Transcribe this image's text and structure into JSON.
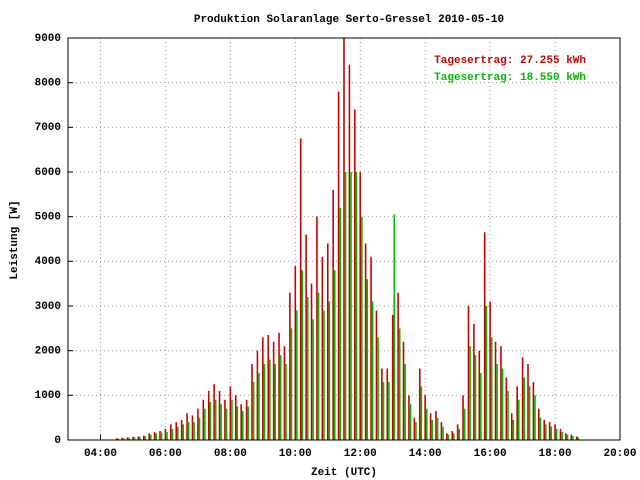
{
  "chart_data": {
    "type": "impulse",
    "title": "Produktion Solaranlage Serto-Gressel 2010-05-10",
    "x_label": "Zeit (UTC)",
    "y_label": "Leistung [W]",
    "x": [
      270,
      280,
      290,
      300,
      310,
      320,
      330,
      340,
      350,
      360,
      370,
      380,
      390,
      400,
      410,
      420,
      430,
      440,
      450,
      460,
      470,
      480,
      490,
      500,
      510,
      520,
      530,
      540,
      550,
      560,
      570,
      580,
      590,
      600,
      610,
      620,
      630,
      640,
      650,
      660,
      670,
      680,
      690,
      700,
      710,
      720,
      730,
      740,
      750,
      760,
      770,
      780,
      790,
      800,
      810,
      820,
      830,
      840,
      850,
      860,
      870,
      880,
      890,
      900,
      910,
      920,
      930,
      940,
      950,
      960,
      970,
      980,
      990,
      1000,
      1010,
      1020,
      1030,
      1040,
      1050,
      1060,
      1070,
      1080,
      1090,
      1100,
      1110,
      1120
    ],
    "series": [
      {
        "name": "Tagesertrag: 27.255 kWh",
        "color": "#cc0000",
        "values": [
          40,
          50,
          60,
          70,
          80,
          100,
          150,
          180,
          200,
          250,
          350,
          400,
          450,
          600,
          550,
          700,
          900,
          1100,
          1250,
          1100,
          900,
          1200,
          1000,
          800,
          900,
          1700,
          2000,
          2300,
          2350,
          2200,
          2400,
          2100,
          3300,
          3900,
          6750,
          4600,
          3500,
          5000,
          4100,
          4400,
          5600,
          7800,
          9000,
          8400,
          7400,
          6000,
          4400,
          4100,
          2900,
          1600,
          1600,
          2800,
          3300,
          2200,
          1000,
          500,
          1600,
          1000,
          600,
          650,
          400,
          150,
          200,
          350,
          1000,
          3000,
          2600,
          2000,
          4650,
          3100,
          2200,
          2100,
          1400,
          600,
          1200,
          1850,
          1700,
          1300,
          700,
          450,
          400,
          350,
          250,
          150,
          120,
          80
        ]
      },
      {
        "name": "Tagesertrag: 18.550 kWh",
        "color": "#00bb00",
        "values": [
          30,
          40,
          50,
          60,
          70,
          80,
          120,
          150,
          170,
          180,
          250,
          300,
          350,
          400,
          400,
          500,
          700,
          850,
          900,
          800,
          700,
          900,
          750,
          650,
          750,
          1300,
          1500,
          1700,
          1800,
          1700,
          1900,
          1700,
          2500,
          2900,
          3800,
          3200,
          2700,
          3300,
          2900,
          3100,
          3800,
          5200,
          6000,
          6000,
          6000,
          5000,
          3600,
          3100,
          2300,
          1300,
          1300,
          5050,
          2500,
          1700,
          800,
          400,
          1200,
          700,
          450,
          500,
          300,
          120,
          150,
          250,
          700,
          2100,
          1900,
          1500,
          3000,
          2300,
          1700,
          1600,
          1100,
          450,
          900,
          1400,
          1200,
          1000,
          500,
          350,
          300,
          250,
          180,
          120,
          90,
          60
        ]
      }
    ],
    "xlim": [
      180,
      1200
    ],
    "xticks": [
      {
        "value": 240,
        "label": "04:00"
      },
      {
        "value": 360,
        "label": "06:00"
      },
      {
        "value": 480,
        "label": "08:00"
      },
      {
        "value": 600,
        "label": "10:00"
      },
      {
        "value": 720,
        "label": "12:00"
      },
      {
        "value": 840,
        "label": "14:00"
      },
      {
        "value": 960,
        "label": "16:00"
      },
      {
        "value": 1080,
        "label": "18:00"
      },
      {
        "value": 1200,
        "label": "20:00"
      }
    ],
    "ylim": [
      0,
      9000
    ],
    "yticks": [
      0,
      1000,
      2000,
      3000,
      4000,
      5000,
      6000,
      7000,
      8000,
      9000
    ],
    "grid": true
  }
}
